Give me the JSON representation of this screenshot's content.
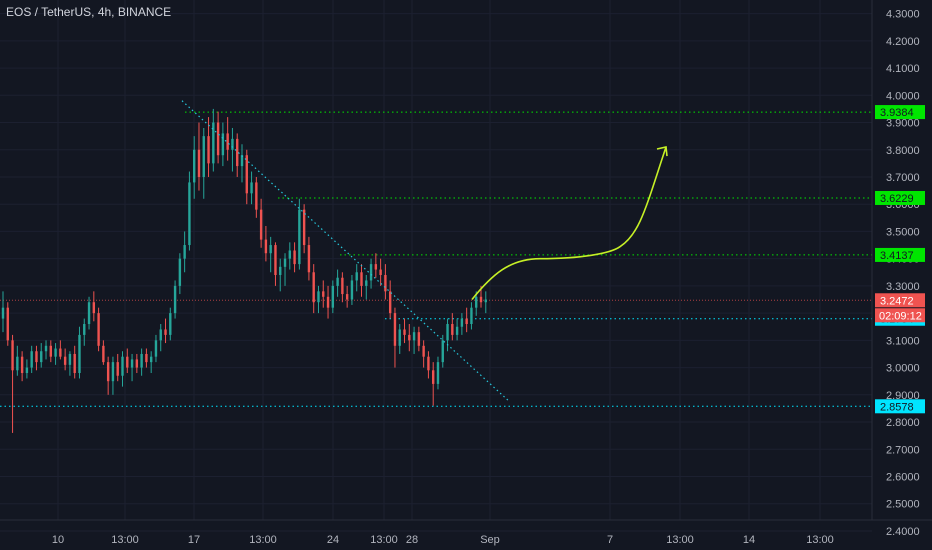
{
  "header": {
    "title": "EOS / TetherUS, 4h, BINANCE"
  },
  "colors": {
    "background": "#131722",
    "up": "#26a69a",
    "down": "#ef5350",
    "axis_text": "#b2b5be",
    "level_green": "#00e600",
    "level_cyan": "#00e5ff",
    "trendline": "#26c6da",
    "projection": "#c6f026"
  },
  "chart_data": {
    "type": "candlestick",
    "title": "EOS / TetherUS, 4h, BINANCE",
    "ylim": [
      2.33,
      4.35
    ],
    "y_ticks": [
      "4.3000",
      "4.2000",
      "4.1000",
      "4.0000",
      "3.9000",
      "3.8000",
      "3.7000",
      "3.6000",
      "3.5000",
      "3.4000",
      "3.3000",
      "3.2000",
      "3.1000",
      "3.0000",
      "2.9000",
      "2.8000",
      "2.7000",
      "2.6000",
      "2.5000",
      "2.4000"
    ],
    "x_ticks": [
      "10",
      "13:00",
      "17",
      "13:00",
      "24",
      "13:00",
      "28",
      "Sep",
      "7",
      "13:00",
      "14",
      "13:00"
    ],
    "candles": [
      [
        3.18,
        3.28,
        3.13,
        3.22
      ],
      [
        3.22,
        3.24,
        3.08,
        3.1
      ],
      [
        3.1,
        3.12,
        2.76,
        2.99
      ],
      [
        2.99,
        3.08,
        2.97,
        3.04
      ],
      [
        3.04,
        3.06,
        2.95,
        2.98
      ],
      [
        2.98,
        3.03,
        2.96,
        3.0
      ],
      [
        3.0,
        3.08,
        2.98,
        3.06
      ],
      [
        3.06,
        3.08,
        2.99,
        3.02
      ],
      [
        3.02,
        3.09,
        3.0,
        3.06
      ],
      [
        3.06,
        3.1,
        3.03,
        3.08
      ],
      [
        3.08,
        3.1,
        3.02,
        3.04
      ],
      [
        3.04,
        3.09,
        3.01,
        3.07
      ],
      [
        3.07,
        3.1,
        3.03,
        3.04
      ],
      [
        3.04,
        3.07,
        2.99,
        3.01
      ],
      [
        3.01,
        3.06,
        2.97,
        3.05
      ],
      [
        3.05,
        3.08,
        2.96,
        2.98
      ],
      [
        2.98,
        3.15,
        2.96,
        3.12
      ],
      [
        3.12,
        3.18,
        3.08,
        3.16
      ],
      [
        3.16,
        3.26,
        3.14,
        3.24
      ],
      [
        3.24,
        3.28,
        3.17,
        3.2
      ],
      [
        3.2,
        3.22,
        3.06,
        3.08
      ],
      [
        3.08,
        3.1,
        3.01,
        3.02
      ],
      [
        3.02,
        3.04,
        2.9,
        2.95
      ],
      [
        2.95,
        3.04,
        2.9,
        3.02
      ],
      [
        3.02,
        3.05,
        2.95,
        2.97
      ],
      [
        2.97,
        3.06,
        2.93,
        3.04
      ],
      [
        3.04,
        3.07,
        2.98,
        3.0
      ],
      [
        3.0,
        3.05,
        2.95,
        3.03
      ],
      [
        3.03,
        3.05,
        2.98,
        3.0
      ],
      [
        3.0,
        3.07,
        2.97,
        3.05
      ],
      [
        3.05,
        3.07,
        3.0,
        3.02
      ],
      [
        3.02,
        3.06,
        2.98,
        3.04
      ],
      [
        3.04,
        3.12,
        3.02,
        3.1
      ],
      [
        3.1,
        3.16,
        3.06,
        3.14
      ],
      [
        3.14,
        3.18,
        3.09,
        3.12
      ],
      [
        3.12,
        3.22,
        3.1,
        3.2
      ],
      [
        3.2,
        3.32,
        3.18,
        3.3
      ],
      [
        3.3,
        3.42,
        3.27,
        3.4
      ],
      [
        3.4,
        3.5,
        3.35,
        3.45
      ],
      [
        3.45,
        3.72,
        3.43,
        3.68
      ],
      [
        3.68,
        3.85,
        3.62,
        3.8
      ],
      [
        3.8,
        3.9,
        3.65,
        3.7
      ],
      [
        3.7,
        3.88,
        3.62,
        3.85
      ],
      [
        3.85,
        3.92,
        3.7,
        3.75
      ],
      [
        3.75,
        3.95,
        3.72,
        3.9
      ],
      [
        3.9,
        3.94,
        3.75,
        3.78
      ],
      [
        3.78,
        3.9,
        3.74,
        3.86
      ],
      [
        3.86,
        3.92,
        3.76,
        3.8
      ],
      [
        3.8,
        3.88,
        3.72,
        3.84
      ],
      [
        3.84,
        3.86,
        3.7,
        3.74
      ],
      [
        3.74,
        3.82,
        3.68,
        3.78
      ],
      [
        3.78,
        3.8,
        3.6,
        3.64
      ],
      [
        3.64,
        3.72,
        3.6,
        3.68
      ],
      [
        3.68,
        3.7,
        3.55,
        3.58
      ],
      [
        3.58,
        3.62,
        3.44,
        3.47
      ],
      [
        3.47,
        3.52,
        3.39,
        3.42
      ],
      [
        3.42,
        3.48,
        3.35,
        3.45
      ],
      [
        3.45,
        3.46,
        3.3,
        3.34
      ],
      [
        3.34,
        3.4,
        3.28,
        3.37
      ],
      [
        3.37,
        3.42,
        3.3,
        3.4
      ],
      [
        3.4,
        3.46,
        3.36,
        3.43
      ],
      [
        3.43,
        3.46,
        3.35,
        3.38
      ],
      [
        3.38,
        3.62,
        3.36,
        3.58
      ],
      [
        3.58,
        3.6,
        3.42,
        3.45
      ],
      [
        3.45,
        3.48,
        3.32,
        3.35
      ],
      [
        3.35,
        3.38,
        3.2,
        3.24
      ],
      [
        3.24,
        3.3,
        3.2,
        3.28
      ],
      [
        3.28,
        3.32,
        3.22,
        3.26
      ],
      [
        3.26,
        3.3,
        3.18,
        3.22
      ],
      [
        3.22,
        3.32,
        3.2,
        3.3
      ],
      [
        3.3,
        3.36,
        3.26,
        3.33
      ],
      [
        3.33,
        3.35,
        3.24,
        3.27
      ],
      [
        3.27,
        3.3,
        3.22,
        3.25
      ],
      [
        3.25,
        3.34,
        3.23,
        3.32
      ],
      [
        3.32,
        3.38,
        3.28,
        3.35
      ],
      [
        3.35,
        3.38,
        3.26,
        3.3
      ],
      [
        3.3,
        3.34,
        3.25,
        3.32
      ],
      [
        3.32,
        3.4,
        3.29,
        3.38
      ],
      [
        3.38,
        3.42,
        3.33,
        3.36
      ],
      [
        3.36,
        3.4,
        3.3,
        3.34
      ],
      [
        3.34,
        3.38,
        3.25,
        3.28
      ],
      [
        3.28,
        3.32,
        3.18,
        3.2
      ],
      [
        3.2,
        3.22,
        3.0,
        3.08
      ],
      [
        3.08,
        3.16,
        3.05,
        3.14
      ],
      [
        3.14,
        3.18,
        3.09,
        3.12
      ],
      [
        3.12,
        3.16,
        3.06,
        3.1
      ],
      [
        3.1,
        3.15,
        3.05,
        3.13
      ],
      [
        3.13,
        3.15,
        3.06,
        3.08
      ],
      [
        3.08,
        3.1,
        3.0,
        3.04
      ],
      [
        3.04,
        3.06,
        2.96,
        2.99
      ],
      [
        2.99,
        3.02,
        2.86,
        2.94
      ],
      [
        2.94,
        3.04,
        2.92,
        3.02
      ],
      [
        3.02,
        3.12,
        3.0,
        3.1
      ],
      [
        3.1,
        3.18,
        3.06,
        3.16
      ],
      [
        3.16,
        3.2,
        3.1,
        3.12
      ],
      [
        3.12,
        3.18,
        3.1,
        3.15
      ],
      [
        3.15,
        3.2,
        3.12,
        3.18
      ],
      [
        3.18,
        3.22,
        3.13,
        3.16
      ],
      [
        3.16,
        3.24,
        3.14,
        3.22
      ],
      [
        3.22,
        3.28,
        3.19,
        3.26
      ],
      [
        3.26,
        3.3,
        3.22,
        3.24
      ],
      [
        3.24,
        3.28,
        3.2,
        3.25
      ]
    ],
    "last_price": "3.2472",
    "countdown": "02:09:12",
    "levels": [
      {
        "label": "3.9384",
        "value": 3.9384,
        "color": "#00e600",
        "text_color": "#131722"
      },
      {
        "label": "3.6229",
        "value": 3.6229,
        "color": "#00e600",
        "text_color": "#131722"
      },
      {
        "label": "3.4137",
        "value": 3.4137,
        "color": "#00e600",
        "text_color": "#131722"
      },
      {
        "label": "3.1794",
        "value": 3.1794,
        "color": "#00e5ff",
        "text_color": "#131722"
      },
      {
        "label": "2.8578",
        "value": 2.8578,
        "color": "#00e5ff",
        "text_color": "#131722"
      }
    ],
    "trendline": {
      "from_price": 3.98,
      "to_price": 2.88
    },
    "projection": {
      "from_price": 3.25,
      "mid_price": 3.4,
      "to_price": 3.81
    }
  }
}
